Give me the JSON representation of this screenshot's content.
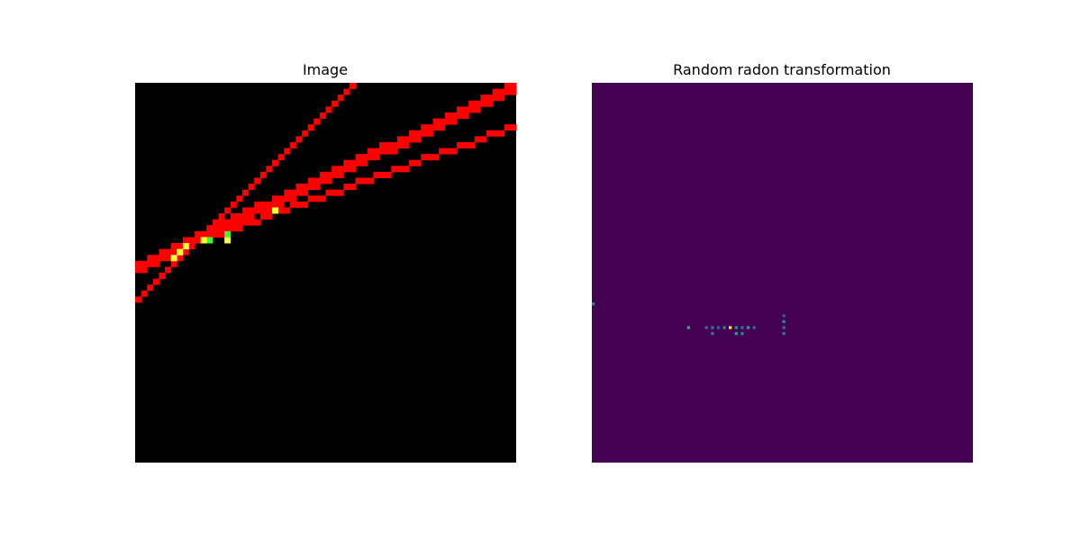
{
  "figure": {
    "background": "#ffffff",
    "panels": [
      {
        "title": "Image"
      },
      {
        "title": "Random radon transformation"
      }
    ]
  },
  "chart_data": [
    {
      "type": "heatmap",
      "title": "Image",
      "grid": false,
      "axes_visible": false,
      "resolution": [
        64,
        64
      ],
      "colors": {
        "background": "#000000",
        "line": "#ff0000",
        "overlap_yellow": "#ffff33",
        "overlap_green": "#33ff33"
      },
      "lines": [
        {
          "rows": [
            [
              0,
              64,
              0,
              47,
              49,
              0
            ],
            [
              0,
              64,
              -1,
              48,
              48,
              0
            ]
          ]
        },
        {
          "rows": [
            [
              0,
              64,
              0,
              29,
              30,
              1
            ],
            [
              0,
              64,
              1,
              29,
              30,
              2
            ]
          ]
        },
        {
          "rows": [
            [
              0,
              64,
              0,
              28,
              25,
              1
            ],
            [
              0,
              64,
              0,
              29,
              25,
              1
            ],
            [
              0,
              64,
              0,
              28,
              25,
              2
            ]
          ]
        }
      ],
      "special_pixels": [
        {
          "col": 15,
          "row": 26,
          "color": "yellow"
        },
        {
          "col": 15,
          "row": 25,
          "color": "green"
        },
        {
          "col": 7,
          "row": 28,
          "color": "yellow"
        },
        {
          "col": 8,
          "row": 27,
          "color": "yellow"
        },
        {
          "col": 12,
          "row": 26,
          "color": "green"
        },
        {
          "col": 11,
          "row": 26,
          "color": "yellow"
        },
        {
          "col": 23,
          "row": 21,
          "color": "yellow"
        },
        {
          "col": 6,
          "row": 29,
          "color": "yellow"
        }
      ]
    },
    {
      "type": "heatmap",
      "title": "Random radon transformation",
      "grid": false,
      "axes_visible": false,
      "colormap": "viridis",
      "resolution": [
        64,
        64
      ],
      "background": "#440154",
      "points": [
        {
          "col": 0,
          "row": 37,
          "value": 0.45
        },
        {
          "col": 16,
          "row": 41,
          "value": 0.6
        },
        {
          "col": 19,
          "row": 41,
          "value": 0.35
        },
        {
          "col": 20,
          "row": 41,
          "value": 0.4
        },
        {
          "col": 21,
          "row": 41,
          "value": 0.3
        },
        {
          "col": 22,
          "row": 41,
          "value": 0.45
        },
        {
          "col": 23,
          "row": 41,
          "value": 1.0
        },
        {
          "col": 24,
          "row": 41,
          "value": 0.5
        },
        {
          "col": 25,
          "row": 41,
          "value": 0.35
        },
        {
          "col": 26,
          "row": 41,
          "value": 0.55
        },
        {
          "col": 27,
          "row": 41,
          "value": 0.35
        },
        {
          "col": 20,
          "row": 42,
          "value": 0.4
        },
        {
          "col": 24,
          "row": 42,
          "value": 0.55
        },
        {
          "col": 25,
          "row": 42,
          "value": 0.45
        },
        {
          "col": 32,
          "row": 39,
          "value": 0.3
        },
        {
          "col": 32,
          "row": 40,
          "value": 0.45
        },
        {
          "col": 32,
          "row": 41,
          "value": 0.35
        },
        {
          "col": 32,
          "row": 42,
          "value": 0.4
        }
      ]
    }
  ]
}
